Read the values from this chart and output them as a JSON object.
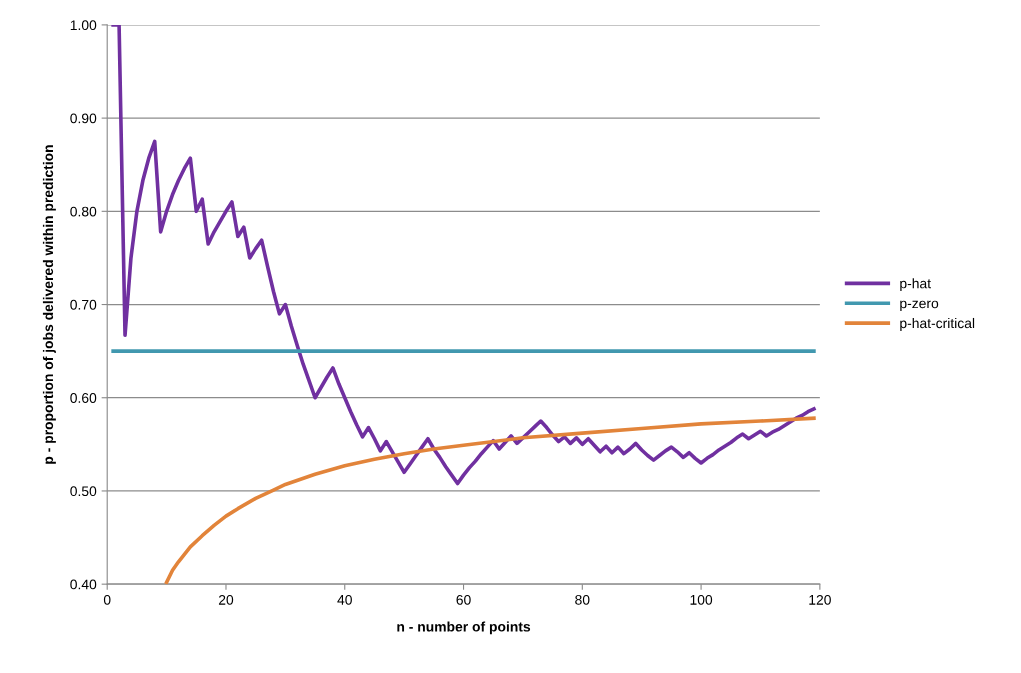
{
  "chart_data": {
    "type": "line",
    "xlabel": "n - number of points",
    "ylabel": "p - proportion of jobs delivered within prediction",
    "xlim": [
      0,
      120
    ],
    "xticks": [
      0,
      20,
      40,
      60,
      80,
      100,
      120
    ],
    "ylim": [
      0.4,
      1.0
    ],
    "yticks": [
      {
        "value": 0.4,
        "label": "0.40"
      },
      {
        "value": 0.5,
        "label": "0.50"
      },
      {
        "value": 0.6,
        "label": "0.60"
      },
      {
        "value": 0.7,
        "label": "0.70"
      },
      {
        "value": 0.8,
        "label": "0.80"
      },
      {
        "value": 0.9,
        "label": "0.90"
      },
      {
        "value": 1.0,
        "label": "1.00"
      }
    ],
    "grid": "y",
    "legend": "right",
    "marker": "none",
    "line_style": "solid",
    "series": [
      {
        "name": "p-hat",
        "color": "#7030a0",
        "x": [
          1,
          2,
          3,
          4,
          5,
          6,
          7,
          8,
          9,
          10,
          11,
          12,
          13,
          14,
          15,
          16,
          17,
          18,
          19,
          20,
          21,
          22,
          23,
          24,
          25,
          26,
          27,
          28,
          29,
          30,
          31,
          32,
          33,
          34,
          35,
          36,
          37,
          38,
          39,
          40,
          41,
          42,
          43,
          44,
          45,
          46,
          47,
          48,
          49,
          50,
          51,
          52,
          53,
          54,
          55,
          56,
          57,
          58,
          59,
          60,
          61,
          62,
          63,
          64,
          65,
          66,
          67,
          68,
          69,
          70,
          71,
          72,
          73,
          74,
          75,
          76,
          77,
          78,
          79,
          80,
          81,
          82,
          83,
          84,
          85,
          86,
          87,
          88,
          89,
          90,
          91,
          92,
          93,
          94,
          95,
          96,
          97,
          98,
          99,
          100,
          101,
          102,
          103,
          104,
          105,
          106,
          107,
          108,
          109,
          110,
          111,
          112,
          113,
          114,
          115,
          116,
          117,
          118,
          119
        ],
        "values": [
          1.0,
          1.0,
          0.667,
          0.75,
          0.8,
          0.833,
          0.857,
          0.875,
          0.778,
          0.8,
          0.818,
          0.833,
          0.846,
          0.857,
          0.8,
          0.813,
          0.765,
          0.778,
          0.789,
          0.8,
          0.81,
          0.773,
          0.783,
          0.75,
          0.76,
          0.769,
          0.741,
          0.714,
          0.69,
          0.7,
          0.677,
          0.656,
          0.636,
          0.618,
          0.6,
          0.611,
          0.622,
          0.632,
          0.615,
          0.6,
          0.585,
          0.571,
          0.558,
          0.568,
          0.556,
          0.543,
          0.553,
          0.542,
          0.531,
          0.52,
          0.529,
          0.538,
          0.547,
          0.556,
          0.545,
          0.536,
          0.526,
          0.517,
          0.508,
          0.517,
          0.525,
          0.532,
          0.54,
          0.547,
          0.554,
          0.545,
          0.552,
          0.559,
          0.551,
          0.557,
          0.563,
          0.569,
          0.575,
          0.568,
          0.56,
          0.553,
          0.558,
          0.551,
          0.557,
          0.55,
          0.556,
          0.549,
          0.542,
          0.548,
          0.541,
          0.547,
          0.54,
          0.545,
          0.551,
          0.544,
          0.538,
          0.533,
          0.538,
          0.543,
          0.547,
          0.542,
          0.536,
          0.541,
          0.535,
          0.53,
          0.535,
          0.539,
          0.544,
          0.548,
          0.552,
          0.557,
          0.561,
          0.556,
          0.56,
          0.564,
          0.559,
          0.563,
          0.566,
          0.57,
          0.574,
          0.578,
          0.581,
          0.585,
          0.588
        ]
      },
      {
        "name": "p-zero",
        "color": "#4198af",
        "x": [
          1,
          119
        ],
        "values": [
          0.65,
          0.65
        ]
      },
      {
        "name": "p-hat-critical",
        "color": "#e2843a",
        "x": [
          10,
          11,
          12,
          14,
          16,
          18,
          20,
          22,
          25,
          28,
          30,
          35,
          40,
          45,
          50,
          55,
          60,
          70,
          80,
          90,
          100,
          110,
          119
        ],
        "values": [
          0.402,
          0.415,
          0.424,
          0.44,
          0.452,
          0.463,
          0.473,
          0.481,
          0.492,
          0.501,
          0.507,
          0.518,
          0.527,
          0.534,
          0.54,
          0.545,
          0.549,
          0.557,
          0.562,
          0.567,
          0.572,
          0.575,
          0.578
        ]
      }
    ]
  }
}
